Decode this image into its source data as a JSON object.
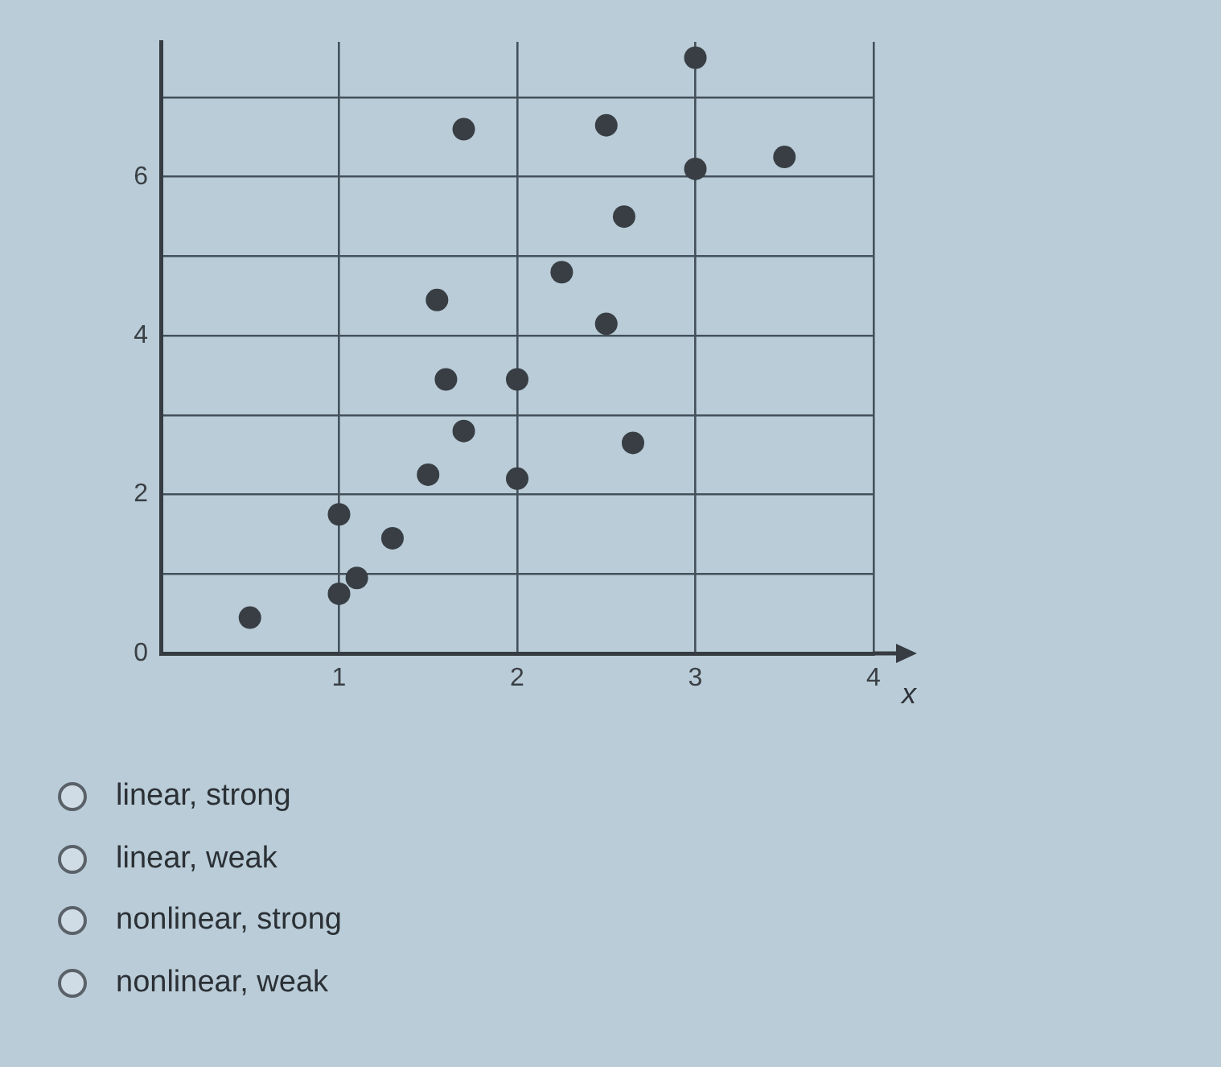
{
  "chart_data": {
    "type": "scatter",
    "xlabel": "x",
    "x": [
      0.5,
      1.0,
      1.1,
      1.0,
      1.3,
      1.5,
      1.7,
      1.6,
      2.0,
      2.0,
      2.65,
      2.5,
      2.25,
      2.6,
      1.55,
      1.7,
      2.5,
      3.0,
      3.5,
      3.0
    ],
    "values": [
      0.45,
      0.75,
      0.95,
      1.75,
      1.45,
      2.25,
      2.8,
      3.45,
      3.45,
      2.2,
      2.65,
      4.15,
      4.8,
      5.5,
      4.45,
      6.6,
      6.65,
      6.1,
      6.25,
      7.5
    ],
    "color": "#383e44",
    "marker": "circle",
    "grid": true,
    "xlim": [
      0,
      4
    ],
    "ylim": [
      0,
      7.7
    ],
    "xticks": [
      1,
      2,
      3,
      4
    ],
    "yticks": [
      0,
      {
        "value": 1,
        "label": null
      },
      2,
      {
        "value": 3,
        "label": null
      },
      4,
      {
        "value": 5,
        "label": null
      },
      6,
      {
        "value": 7,
        "label": null
      }
    ],
    "annotations": [
      "linear, strong",
      "linear, weak",
      "nonlinear, strong",
      "nonlinear, weak"
    ]
  }
}
